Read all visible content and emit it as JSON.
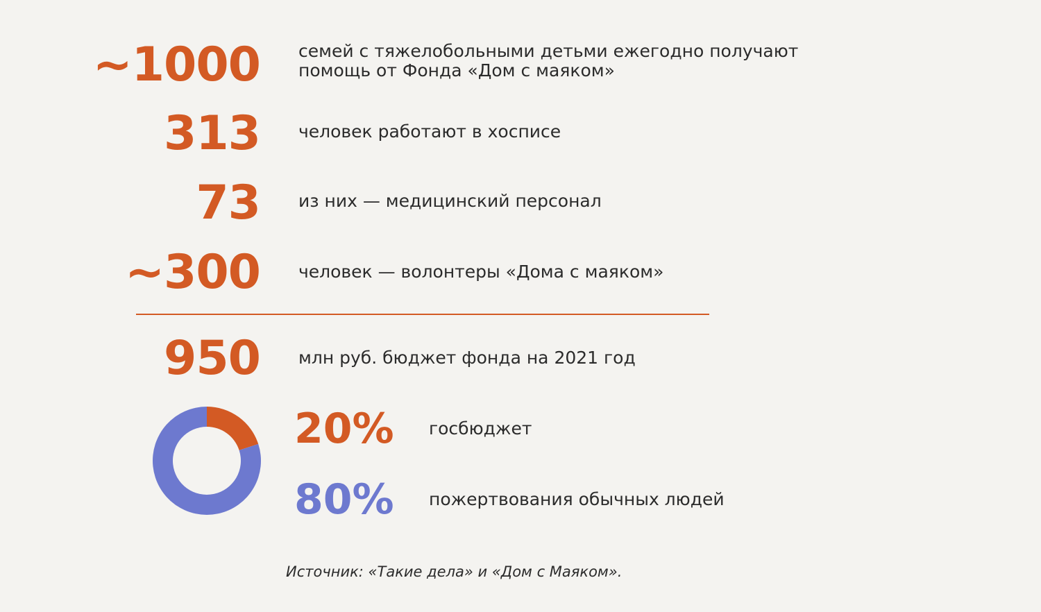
{
  "stats": [
    {
      "value": "~1000",
      "text_line1": "семей с тяжелобольными детьми ежегодно получают",
      "text_line2": "помощь от Фонда «Дом с маяком»"
    },
    {
      "value": "313",
      "text": "человек работают в хосписе"
    },
    {
      "value": "73",
      "text": "из них — медицинский персонал"
    },
    {
      "value": "~300",
      "text": "человек — волонтеры «Дома с маяком»"
    }
  ],
  "budget": {
    "value": "950",
    "text": "млн руб. бюджет фонда на 2021 год"
  },
  "chart_data": {
    "type": "pie",
    "donut": true,
    "title": "",
    "slices": [
      {
        "label": "госбюджет",
        "value": 20,
        "display": "20%",
        "color": "#d35a24"
      },
      {
        "label": "пожертвования обычных людей",
        "value": 80,
        "display": "80%",
        "color": "#6d79cf"
      }
    ]
  },
  "source": "Источник: «Такие дела» и «Дом с Маяком»."
}
